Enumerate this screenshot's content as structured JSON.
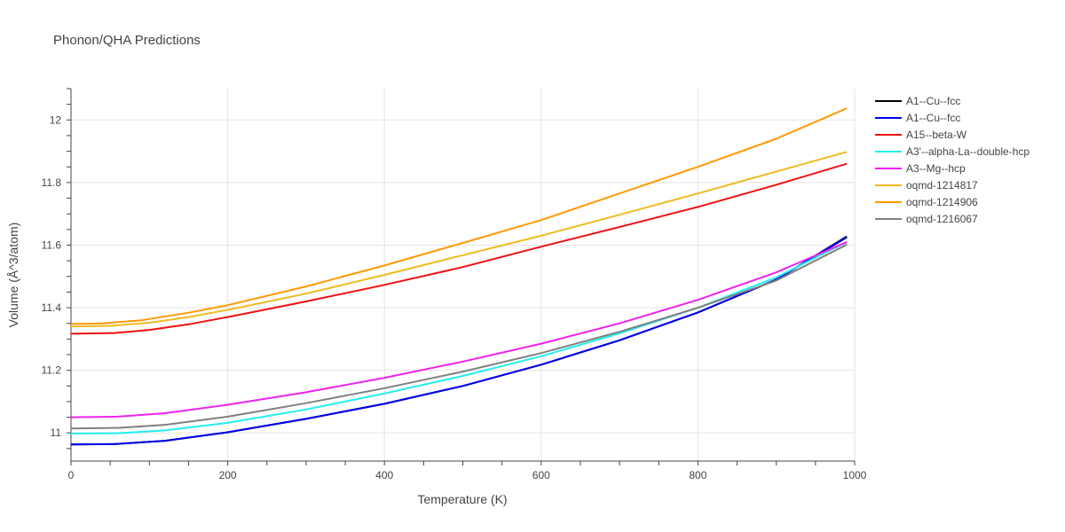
{
  "chart_data": {
    "type": "line",
    "title": "Phonon/QHA Predictions",
    "xlabel": "Temperature (K)",
    "ylabel": "Volume (Å^3/atom)",
    "xlim": [
      0,
      1000
    ],
    "ylim": [
      10.91,
      12.1
    ],
    "xticks": [
      0,
      200,
      400,
      600,
      800,
      1000
    ],
    "yticks": [
      11,
      11.2,
      11.4,
      11.6,
      11.8,
      12
    ],
    "xtick_labels": [
      "0",
      "200",
      "400",
      "600",
      "800",
      "1000"
    ],
    "ytick_labels": [
      "11",
      "11.2",
      "11.4",
      "11.6",
      "11.8",
      "12"
    ],
    "grid": true,
    "legend_position": "right",
    "series": [
      {
        "name": "A1--Cu--fcc",
        "color": "#000000",
        "x": [
          0,
          55,
          120,
          200,
          300,
          400,
          500,
          600,
          700,
          800,
          900,
          990
        ],
        "y": [
          10.963,
          10.964,
          10.975,
          11.002,
          11.045,
          11.093,
          11.15,
          11.218,
          11.296,
          11.385,
          11.49,
          11.628
        ]
      },
      {
        "name": "A1--Cu--fcc",
        "color": "#0000ee",
        "x": [
          0,
          55,
          120,
          200,
          300,
          400,
          500,
          600,
          700,
          800,
          900,
          990
        ],
        "y": [
          10.963,
          10.964,
          10.975,
          11.002,
          11.045,
          11.093,
          11.15,
          11.218,
          11.296,
          11.385,
          11.49,
          11.625
        ]
      },
      {
        "name": "A15--beta-W",
        "color": "#ee1111",
        "x": [
          0,
          55,
          100,
          150,
          200,
          300,
          400,
          500,
          600,
          700,
          800,
          900,
          990
        ],
        "y": [
          11.317,
          11.319,
          11.329,
          11.347,
          11.37,
          11.42,
          11.473,
          11.53,
          11.595,
          11.658,
          11.722,
          11.793,
          11.86
        ]
      },
      {
        "name": "A3'--alpha-La--double-hcp",
        "color": "#22eeee",
        "x": [
          0,
          60,
          120,
          200,
          300,
          400,
          500,
          600,
          700,
          800,
          900,
          990
        ],
        "y": [
          10.998,
          10.999,
          11.008,
          11.032,
          11.075,
          11.126,
          11.182,
          11.245,
          11.318,
          11.4,
          11.497,
          11.61
        ]
      },
      {
        "name": "A3--Mg--hcp",
        "color": "#ee22ee",
        "x": [
          0,
          60,
          120,
          200,
          300,
          400,
          500,
          600,
          700,
          800,
          900,
          990
        ],
        "y": [
          11.05,
          11.052,
          11.063,
          11.09,
          11.13,
          11.176,
          11.228,
          11.285,
          11.35,
          11.425,
          11.513,
          11.61
        ]
      },
      {
        "name": "oqmd-1214817",
        "color": "#eebb22",
        "x": [
          0,
          50,
          100,
          150,
          200,
          300,
          400,
          500,
          600,
          700,
          800,
          900,
          990
        ],
        "y": [
          11.34,
          11.342,
          11.352,
          11.37,
          11.393,
          11.445,
          11.505,
          11.568,
          11.63,
          11.697,
          11.765,
          11.835,
          11.898
        ]
      },
      {
        "name": "oqmd-1214906",
        "color": "#ff9900",
        "x": [
          0,
          40,
          90,
          150,
          200,
          300,
          400,
          500,
          600,
          700,
          800,
          900,
          990
        ],
        "y": [
          11.348,
          11.35,
          11.36,
          11.384,
          11.408,
          11.468,
          11.535,
          11.607,
          11.68,
          11.765,
          11.85,
          11.94,
          12.037
        ]
      },
      {
        "name": "oqmd-1216067",
        "color": "#808080",
        "x": [
          0,
          60,
          120,
          200,
          300,
          400,
          500,
          600,
          700,
          800,
          900,
          990
        ],
        "y": [
          11.014,
          11.016,
          11.026,
          11.052,
          11.095,
          11.143,
          11.196,
          11.255,
          11.323,
          11.4,
          11.487,
          11.602
        ]
      }
    ]
  }
}
